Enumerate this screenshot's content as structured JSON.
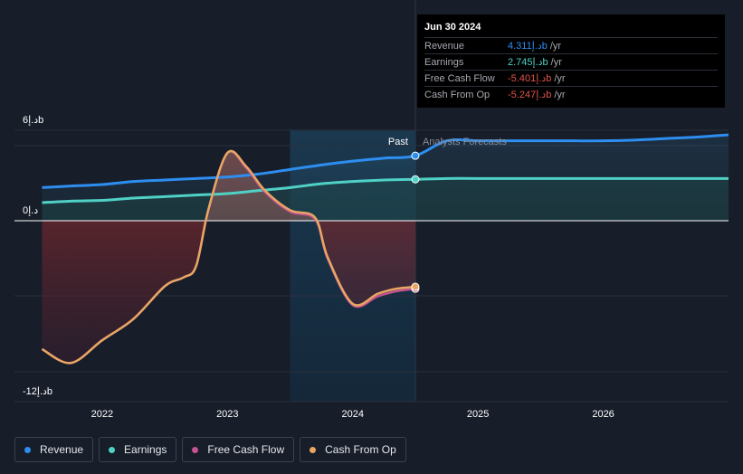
{
  "chart_data": {
    "type": "area",
    "y_tick_labels": [
      "6د.إb",
      "0د.إ",
      "-12د.إb"
    ],
    "yticks": [
      6,
      0,
      -12
    ],
    "ylim": [
      -12,
      6
    ],
    "x_tick_labels": [
      "2022",
      "2023",
      "2024",
      "2025",
      "2026"
    ],
    "xticks": [
      2022,
      2023,
      2024,
      2025,
      2026
    ],
    "xlim": [
      2021.3,
      2027.0
    ],
    "past_label": "Past",
    "forecast_label": "Analysts Forecasts",
    "divider_x": 2024.5,
    "highlight_range": [
      2023.5,
      2024.5
    ],
    "series": [
      {
        "name": "Revenue",
        "color": "#2d8ef0",
        "x": [
          2021.52,
          2021.75,
          2022.0,
          2022.25,
          2022.5,
          2022.75,
          2023.0,
          2023.25,
          2023.5,
          2023.75,
          2024.0,
          2024.25,
          2024.5,
          2024.75,
          2025.0,
          2025.25,
          2025.5,
          2025.75,
          2026.0,
          2026.25,
          2026.5,
          2026.75,
          2027.0
        ],
        "y": [
          2.2,
          2.3,
          2.4,
          2.6,
          2.7,
          2.8,
          2.9,
          3.1,
          3.4,
          3.7,
          3.95,
          4.15,
          4.311,
          5.3,
          5.3,
          5.3,
          5.3,
          5.3,
          5.3,
          5.35,
          5.45,
          5.55,
          5.7
        ]
      },
      {
        "name": "Earnings",
        "color": "#4fd1c5",
        "x": [
          2021.52,
          2021.75,
          2022.0,
          2022.25,
          2022.5,
          2022.75,
          2023.0,
          2023.25,
          2023.5,
          2023.75,
          2024.0,
          2024.25,
          2024.5,
          2024.75,
          2025.0,
          2025.5,
          2026.0,
          2026.5,
          2027.0
        ],
        "y": [
          1.2,
          1.3,
          1.35,
          1.5,
          1.6,
          1.7,
          1.8,
          2.0,
          2.2,
          2.45,
          2.6,
          2.7,
          2.745,
          2.8,
          2.8,
          2.8,
          2.8,
          2.8,
          2.8
        ]
      },
      {
        "name": "Free Cash Flow",
        "color": "#c4538f",
        "x": [
          2021.52,
          2021.75,
          2022.0,
          2022.25,
          2022.5,
          2022.65,
          2022.75,
          2022.85,
          2023.0,
          2023.15,
          2023.3,
          2023.5,
          2023.7,
          2023.8,
          2024.0,
          2024.2,
          2024.35,
          2024.5
        ],
        "y": [
          -10.2,
          -11.3,
          -9.5,
          -7.8,
          -5.2,
          -4.5,
          -3.6,
          0.8,
          4.5,
          3.5,
          1.9,
          0.6,
          0.1,
          -3.0,
          -6.7,
          -6.0,
          -5.6,
          -5.401
        ]
      },
      {
        "name": "Cash From Op",
        "color": "#e8a663",
        "x": [
          2021.52,
          2021.75,
          2022.0,
          2022.25,
          2022.5,
          2022.65,
          2022.75,
          2022.85,
          2023.0,
          2023.15,
          2023.3,
          2023.5,
          2023.7,
          2023.8,
          2024.0,
          2024.2,
          2024.35,
          2024.5
        ],
        "y": [
          -10.2,
          -11.3,
          -9.5,
          -7.8,
          -5.2,
          -4.5,
          -3.6,
          0.8,
          4.5,
          3.6,
          2.0,
          0.7,
          0.2,
          -2.9,
          -6.6,
          -5.8,
          -5.4,
          -5.247
        ]
      }
    ]
  },
  "tooltip": {
    "date": "Jun 30 2024",
    "rows": [
      {
        "label": "Revenue",
        "value": "4.311د.إb",
        "unit": "/yr",
        "color": "#2d8ef0"
      },
      {
        "label": "Earnings",
        "value": "2.745د.إb",
        "unit": "/yr",
        "color": "#4fd1c5"
      },
      {
        "label": "Free Cash Flow",
        "value": "-5.401د.إb",
        "unit": "/yr",
        "color": "#e2534b"
      },
      {
        "label": "Cash From Op",
        "value": "-5.247د.إb",
        "unit": "/yr",
        "color": "#e2534b"
      }
    ]
  },
  "legend": [
    {
      "label": "Revenue",
      "color": "#2d8ef0"
    },
    {
      "label": "Earnings",
      "color": "#4fd1c5"
    },
    {
      "label": "Free Cash Flow",
      "color": "#c4538f"
    },
    {
      "label": "Cash From Op",
      "color": "#e8a663"
    }
  ]
}
